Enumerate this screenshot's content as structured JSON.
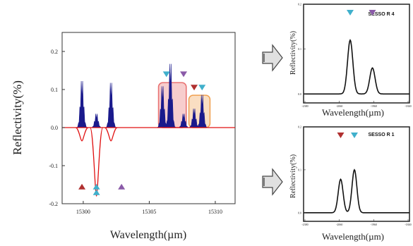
{
  "chart_data": [
    {
      "type": "bar",
      "panel": "main",
      "xlabel": "Wavelength(µm)",
      "ylabel": "Reflectivity(%)",
      "xlim": [
        15298.4,
        15311.5
      ],
      "ylim": [
        -0.2,
        0.25
      ],
      "x_ticks": [
        "15300",
        "15305",
        "15310"
      ],
      "y_ticks": [
        "0.2",
        "0.1",
        "0.0",
        "-0.1",
        "-0.2"
      ],
      "zero_line_color": "#e01010",
      "positive_color": "#1a1a8c",
      "negative_color": "#e01010",
      "peaks_positive": [
        {
          "x": 15299.9,
          "y": 0.135
        },
        {
          "x": 15301.0,
          "y": 0.04
        },
        {
          "x": 15302.1,
          "y": 0.13
        },
        {
          "x": 15306.0,
          "y": 0.12
        },
        {
          "x": 15306.6,
          "y": 0.185
        },
        {
          "x": 15307.6,
          "y": 0.04
        },
        {
          "x": 15308.4,
          "y": 0.055
        },
        {
          "x": 15309.0,
          "y": 0.095
        }
      ],
      "peaks_negative": [
        {
          "x": 15299.9,
          "y": -0.035
        },
        {
          "x": 15301.0,
          "y": -0.18
        },
        {
          "x": 15302.1,
          "y": -0.035
        }
      ],
      "markers": [
        {
          "x": 15299.9,
          "y": -0.155,
          "shape": "up",
          "color": "#b03030"
        },
        {
          "x": 15301.0,
          "y": -0.155,
          "shape": "up",
          "color": "#40b0cc"
        },
        {
          "x": 15301.0,
          "y": -0.17,
          "shape": "up",
          "color": "#40b0cc"
        },
        {
          "x": 15302.9,
          "y": -0.155,
          "shape": "up",
          "color": "#8a5aa8"
        },
        {
          "x": 15306.3,
          "y": 0.14,
          "shape": "down",
          "color": "#40b0cc"
        },
        {
          "x": 15307.6,
          "y": 0.14,
          "shape": "down",
          "color": "#8a5aa8"
        },
        {
          "x": 15308.4,
          "y": 0.105,
          "shape": "down",
          "color": "#b03030"
        },
        {
          "x": 15309.0,
          "y": 0.105,
          "shape": "down",
          "color": "#40b0cc"
        }
      ],
      "highlight_boxes": [
        {
          "x0": 15305.7,
          "x1": 15307.8,
          "y0": 0.0,
          "y1": 0.118,
          "color": "#e87070"
        },
        {
          "x0": 15308.0,
          "x1": 15309.6,
          "y0": 0.0,
          "y1": 0.085,
          "color": "#f0a050"
        }
      ]
    },
    {
      "type": "line",
      "panel": "top-right",
      "title": "SESSO R 4",
      "xlabel": "Wavelength(µm)",
      "ylabel": "Reflectivity(%)",
      "x_tick_labels": [
        "-2380",
        "-2060",
        "-1960",
        "-1840"
      ],
      "y_tick_labels": [
        "0.2",
        "0.1",
        "0.0"
      ],
      "xlim": [
        0,
        100
      ],
      "ylim": [
        -0.02,
        0.2
      ],
      "peaks": [
        {
          "x": 44,
          "y": 0.12,
          "w": 2.5
        },
        {
          "x": 65,
          "y": 0.058,
          "w": 2.5
        }
      ],
      "markers": [
        {
          "x": 44,
          "color": "#40b0cc"
        },
        {
          "x": 65,
          "color": "#8a5aa8"
        }
      ]
    },
    {
      "type": "line",
      "panel": "bottom-right",
      "title": "SESSO R 1",
      "xlabel": "Wavelength(µm)",
      "ylabel": "Reflectivity(%)",
      "x_tick_labels": [
        "-2380",
        "-2060",
        "-1960",
        "-1840"
      ],
      "y_tick_labels": [
        "0.2",
        "0.1",
        "0.0"
      ],
      "xlim": [
        0,
        100
      ],
      "ylim": [
        -0.02,
        0.2
      ],
      "peaks": [
        {
          "x": 35,
          "y": 0.078,
          "w": 2.3
        },
        {
          "x": 48,
          "y": 0.1,
          "w": 2.3
        }
      ],
      "markers": [
        {
          "x": 35,
          "color": "#b03030"
        },
        {
          "x": 48,
          "color": "#40b0cc"
        }
      ]
    }
  ]
}
